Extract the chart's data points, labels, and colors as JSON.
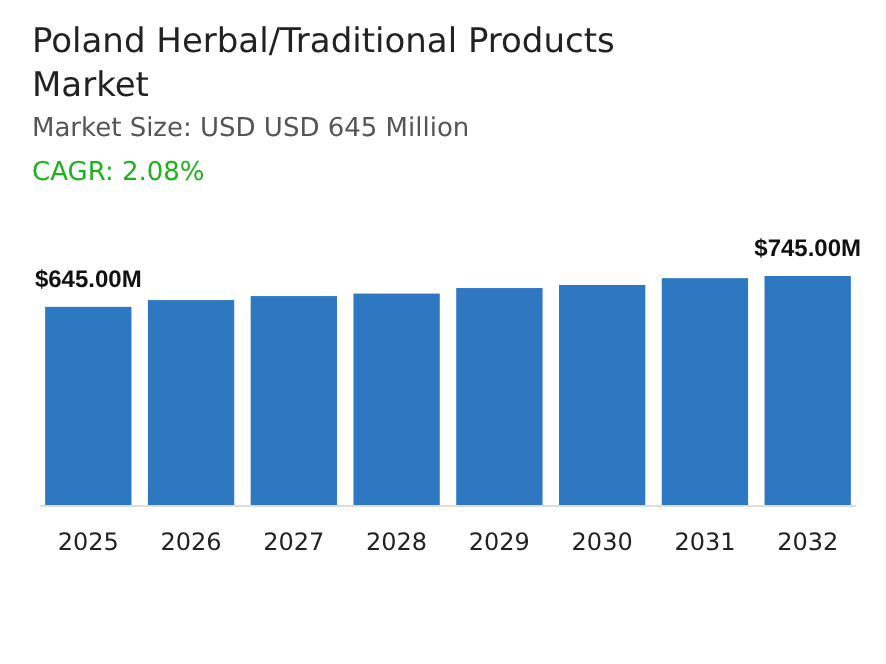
{
  "chart_data": {
    "type": "bar",
    "title": "Poland Herbal/Traditional Products Market",
    "subtitle": "Market Size: USD USD 645 Million",
    "annotations": [
      "CAGR: 2.08%"
    ],
    "categories": [
      "2025",
      "2026",
      "2027",
      "2028",
      "2029",
      "2030",
      "2031",
      "2032"
    ],
    "values": [
      645,
      667,
      680,
      688,
      706,
      716,
      738,
      745
    ],
    "value_labels": [
      "$645.00M",
      null,
      null,
      null,
      null,
      null,
      null,
      "$745.00M"
    ],
    "color": "#2e78c2"
  }
}
